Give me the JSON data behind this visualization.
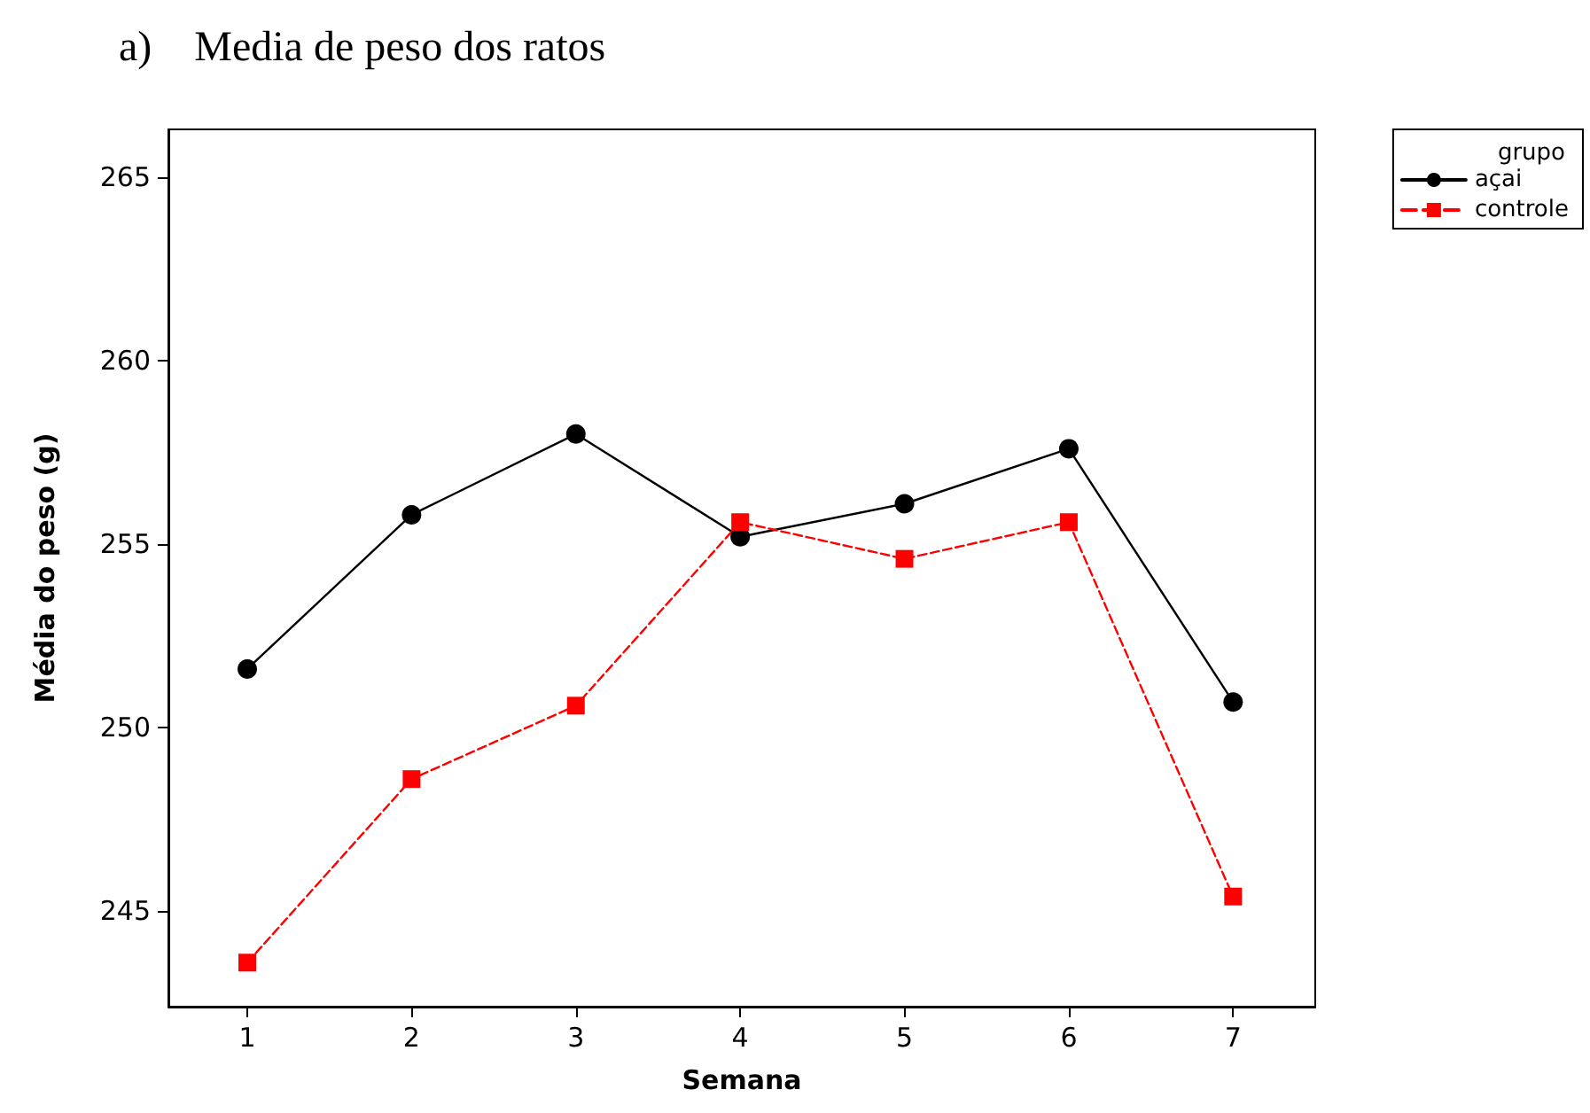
{
  "chart_data": {
    "type": "line",
    "title": "a)    Media de peso dos ratos",
    "xlabel": "Semana",
    "ylabel": "Média do peso (g)",
    "legend_title": "grupo",
    "legend": "top right",
    "grid": false,
    "x": [
      1,
      2,
      3,
      4,
      5,
      6,
      7
    ],
    "xlim": [
      0.52,
      7.5
    ],
    "xticks": [
      1,
      2,
      3,
      4,
      5,
      6,
      7
    ],
    "ylim": [
      242.4,
      266.3
    ],
    "yticks": [
      245,
      250,
      255,
      260,
      265
    ],
    "series": [
      {
        "name": "açai",
        "color": "#000000",
        "marker": "circle",
        "line_style": "solid",
        "values": [
          251.6,
          255.8,
          258.0,
          255.2,
          256.1,
          257.6,
          250.7
        ]
      },
      {
        "name": "controle",
        "color": "#ff0000",
        "marker": "square",
        "line_style": "dashed",
        "values": [
          243.6,
          248.6,
          250.6,
          255.6,
          254.6,
          255.6,
          245.4
        ]
      }
    ]
  }
}
